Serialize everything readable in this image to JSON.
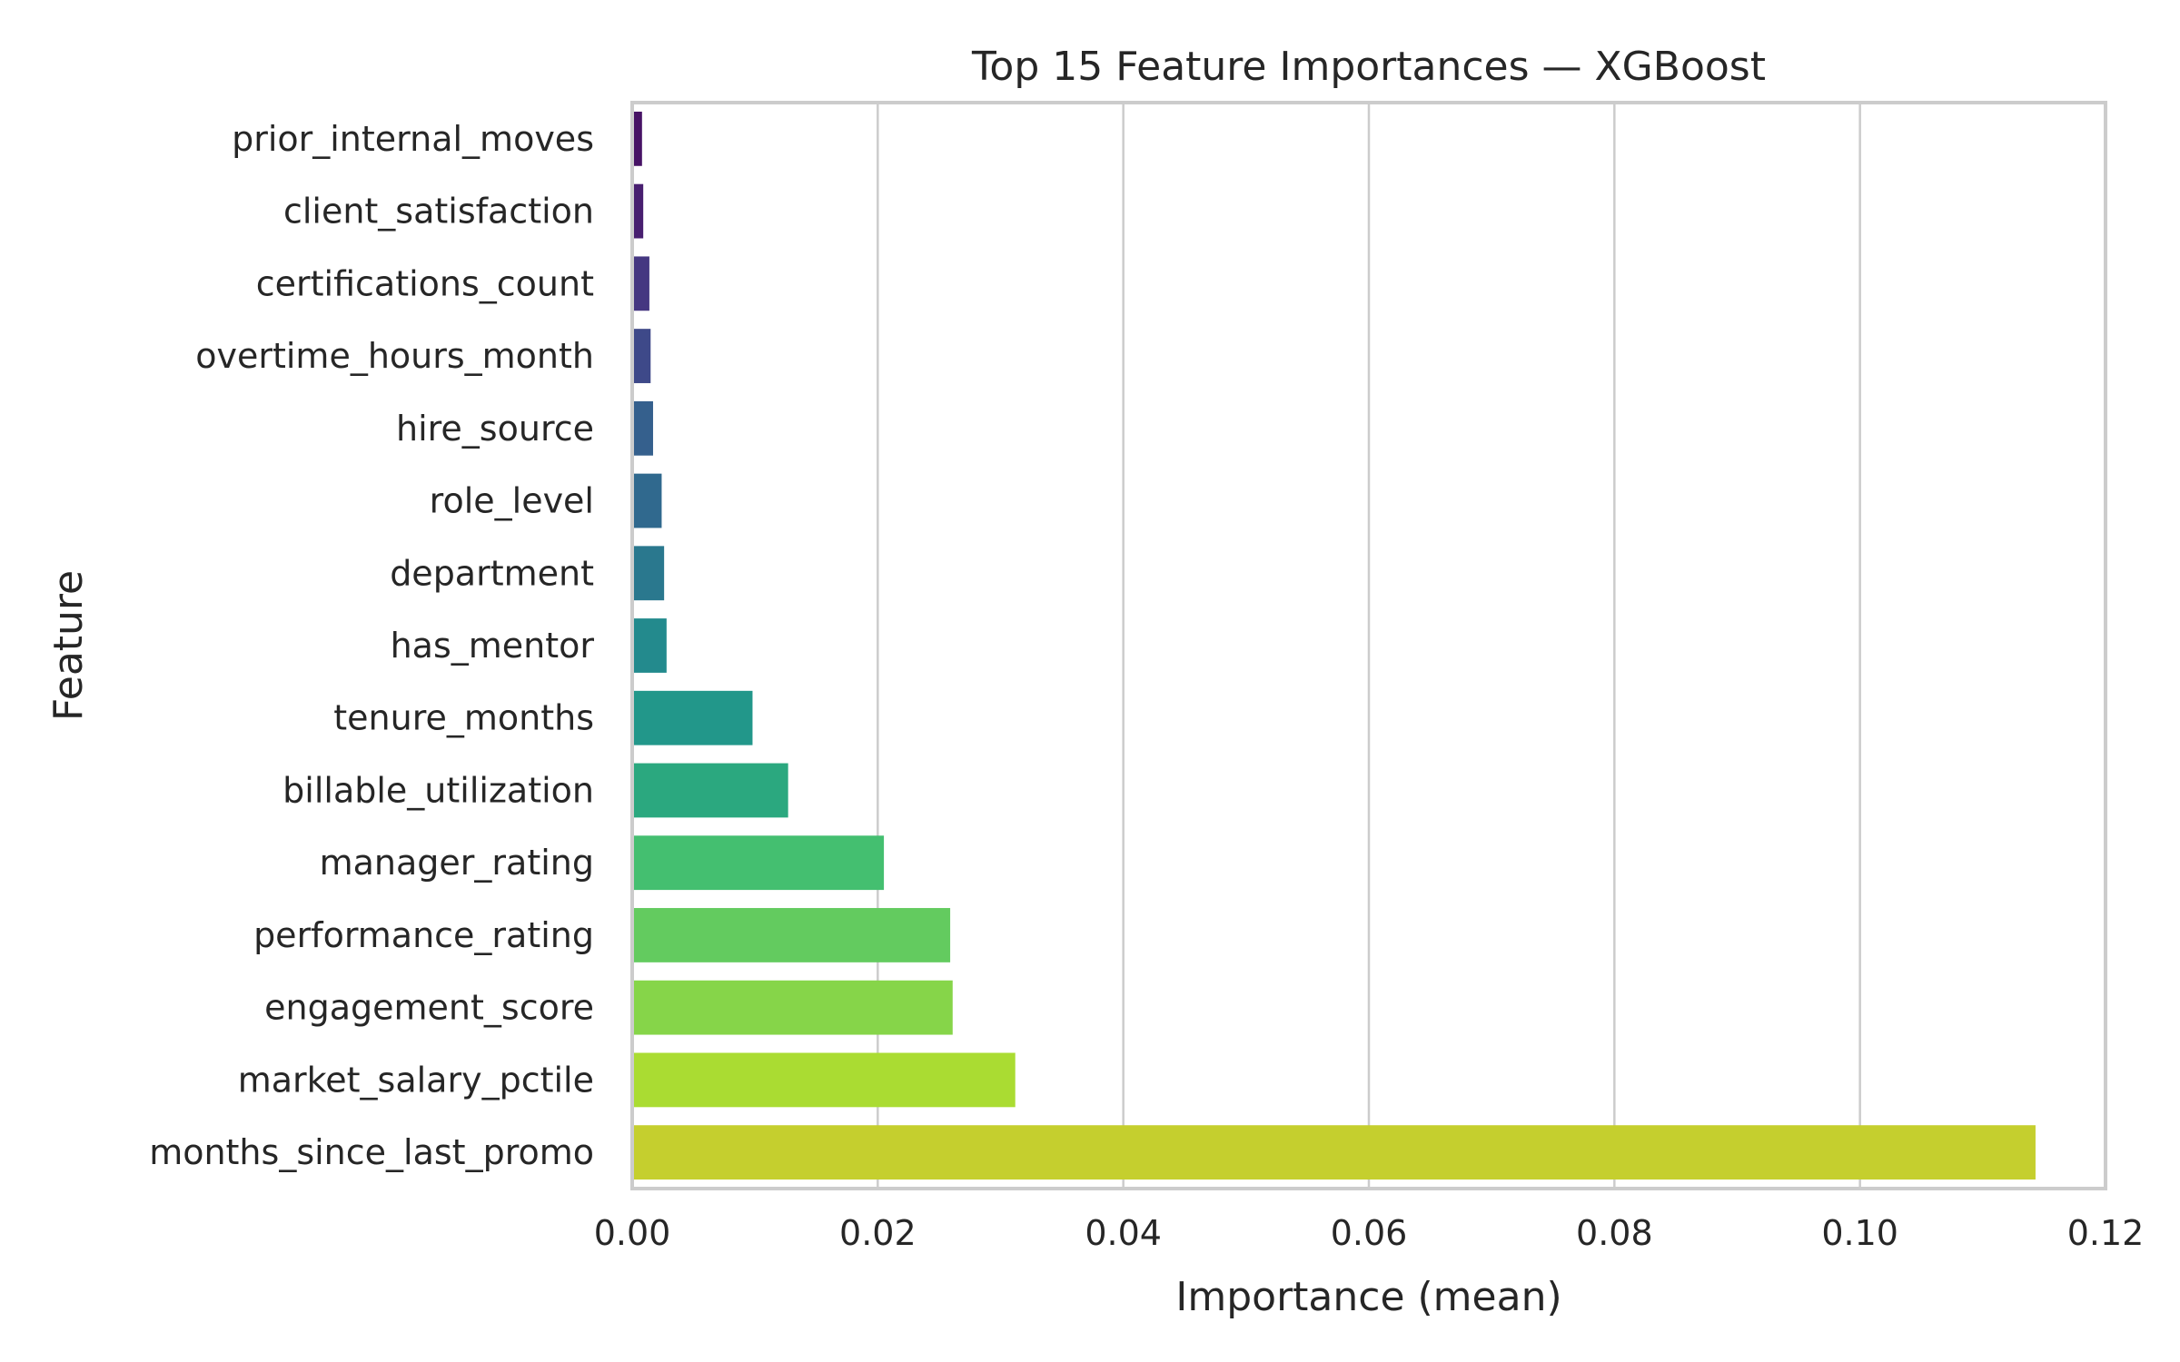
{
  "chart_data": {
    "type": "bar",
    "orientation": "horizontal",
    "title": "Top 15 Feature Importances — XGBoost",
    "xlabel": "Importance (mean)",
    "ylabel": "Feature",
    "xlim": [
      0,
      0.12
    ],
    "xticks": [
      "0.00",
      "0.02",
      "0.04",
      "0.06",
      "0.08",
      "0.10",
      "0.12"
    ],
    "grid": "vertical",
    "categories": [
      "prior_internal_moves",
      "client_satisfaction",
      "certifications_count",
      "overtime_hours_month",
      "hire_source",
      "role_level",
      "department",
      "has_mentor",
      "tenure_months",
      "billable_utilization",
      "manager_rating",
      "performance_rating",
      "engagement_score",
      "market_salary_pctile",
      "months_since_last_promo"
    ],
    "values": [
      0.0008,
      0.0009,
      0.0014,
      0.0015,
      0.0017,
      0.0024,
      0.0026,
      0.0028,
      0.0098,
      0.0127,
      0.0205,
      0.0259,
      0.0261,
      0.0312,
      0.1143
    ],
    "colors": [
      "#471365",
      "#481f70",
      "#453781",
      "#3e4989",
      "#35608d",
      "#30698e",
      "#2a788e",
      "#238a8d",
      "#22978a",
      "#2ba87f",
      "#44bf70",
      "#63cb5f",
      "#86d549",
      "#aadc32",
      "#c5cf2e"
    ]
  }
}
